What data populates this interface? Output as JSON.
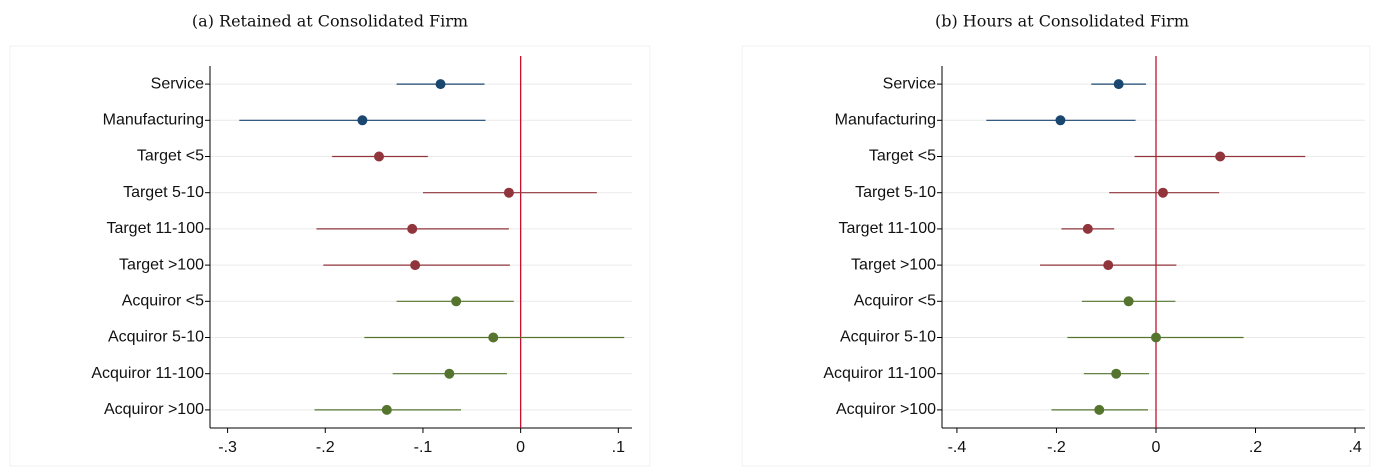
{
  "chart_data": [
    {
      "type": "coefplot",
      "title": "(a) Retained at Consolidated Firm",
      "categories": [
        "Service",
        "Manufacturing",
        "Target <5",
        "Target 5-10",
        "Target 11-100",
        "Target >100",
        "Acquiror <5",
        "Acquiror 5-10",
        "Acquiror 11-100",
        "Acquiror >100"
      ],
      "values": [
        -0.082,
        -0.162,
        -0.145,
        -0.012,
        -0.111,
        -0.108,
        -0.066,
        -0.028,
        -0.073,
        -0.137
      ],
      "lower": [
        -0.127,
        -0.288,
        -0.193,
        -0.1,
        -0.209,
        -0.202,
        -0.127,
        -0.16,
        -0.131,
        -0.211
      ],
      "upper": [
        -0.037,
        -0.036,
        -0.095,
        0.078,
        -0.012,
        -0.011,
        -0.007,
        0.106,
        -0.014,
        -0.061
      ],
      "colors": [
        "#1a476f",
        "#1a476f",
        "#90353b",
        "#90353b",
        "#90353b",
        "#90353b",
        "#55752f",
        "#55752f",
        "#55752f",
        "#55752f"
      ],
      "xlim": [
        -0.318,
        0.114
      ],
      "xticks": [
        {
          "value": -0.3,
          "label": "-.3"
        },
        {
          "value": -0.2,
          "label": "-.2"
        },
        {
          "value": -0.1,
          "label": "-.1"
        },
        0,
        {
          "value": 0.1,
          "label": ".1"
        }
      ],
      "xline": 0,
      "grid": true
    },
    {
      "type": "coefplot",
      "title": "(b) Hours at Consolidated Firm",
      "categories": [
        "Service",
        "Manufacturing",
        "Target <5",
        "Target 5-10",
        "Target 11-100",
        "Target >100",
        "Acquiror <5",
        "Acquiror 5-10",
        "Acquiror 11-100",
        "Acquiror >100"
      ],
      "values": [
        -0.075,
        -0.192,
        0.129,
        0.014,
        -0.137,
        -0.096,
        -0.055,
        0,
        -0.08,
        -0.114
      ],
      "lower": [
        -0.13,
        -0.341,
        -0.043,
        -0.094,
        -0.19,
        -0.233,
        -0.149,
        -0.178,
        -0.145,
        -0.21
      ],
      "upper": [
        -0.02,
        -0.041,
        0.3,
        0.127,
        -0.084,
        0.041,
        0.039,
        0.176,
        -0.014,
        -0.016
      ],
      "colors": [
        "#1a476f",
        "#1a476f",
        "#90353b",
        "#90353b",
        "#90353b",
        "#90353b",
        "#55752f",
        "#55752f",
        "#55752f",
        "#55752f"
      ],
      "xlim": [
        -0.43,
        0.42
      ],
      "xticks": [
        {
          "value": -0.4,
          "label": "-.4"
        },
        {
          "value": -0.2,
          "label": "-.2"
        },
        0,
        {
          "value": 0.2,
          "label": ".2"
        },
        {
          "value": 0.4,
          "label": ".4"
        }
      ],
      "xline": 0,
      "grid": true
    }
  ]
}
